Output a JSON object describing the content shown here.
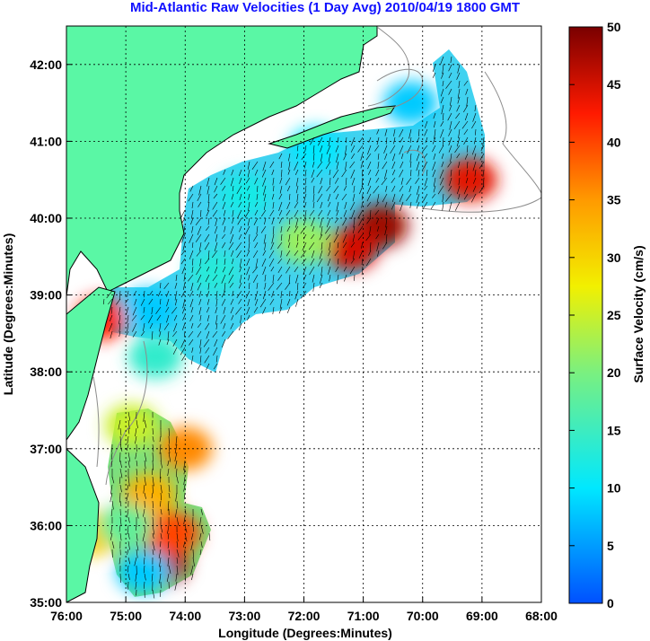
{
  "title": "Mid-Atlantic Raw Velocities (1 Day Avg) 2010/04/19 1800 GMT",
  "xlabel": "Longitude (Degrees:Minutes)",
  "ylabel": "Latitude (Degrees:Minutes)",
  "x_ticks": [
    "76:00",
    "75:00",
    "74:00",
    "73:00",
    "72:00",
    "71:00",
    "70:00",
    "69:00",
    "68:00"
  ],
  "y_ticks": [
    "42:00",
    "41:00",
    "40:00",
    "39:00",
    "38:00",
    "37:00",
    "36:00",
    "35:00"
  ],
  "colorbar": {
    "label": "Surface Velocity (cm/s)",
    "ticks": [
      "50",
      "45",
      "40",
      "35",
      "30",
      "25",
      "20",
      "15",
      "10",
      "5",
      "0"
    ],
    "range": [
      0,
      50
    ]
  },
  "colors": {
    "title": "#1010ff",
    "land": "#5af7a5",
    "coast_contour": "#8c8c8c"
  },
  "chart_data": {
    "type": "heatmap",
    "title": "Mid-Atlantic Raw Velocities (1 Day Avg) 2010/04/19 1800 GMT",
    "xlabel": "Longitude (Degrees:Minutes)",
    "ylabel": "Latitude (Degrees:Minutes)",
    "xlim": [
      -76,
      -68
    ],
    "ylim": [
      35,
      42.5
    ],
    "grid": true,
    "colorbar_label": "Surface Velocity (cm/s)",
    "colorbar_range": [
      0,
      50
    ],
    "regions": [
      {
        "lon": -70.7,
        "lat": 39.9,
        "speed": 48
      },
      {
        "lon": -71.2,
        "lat": 39.6,
        "speed": 45
      },
      {
        "lon": -69.2,
        "lat": 40.5,
        "speed": 44
      },
      {
        "lon": -75.4,
        "lat": 38.7,
        "speed": 42
      },
      {
        "lon": -74.4,
        "lat": 35.5,
        "speed": 47
      },
      {
        "lon": -74.2,
        "lat": 35.9,
        "speed": 40
      },
      {
        "lon": -74.0,
        "lat": 37.0,
        "speed": 36
      },
      {
        "lon": -74.6,
        "lat": 36.4,
        "speed": 33
      },
      {
        "lon": -75.5,
        "lat": 35.9,
        "speed": 30
      },
      {
        "lon": -74.9,
        "lat": 37.3,
        "speed": 25
      },
      {
        "lon": -70.2,
        "lat": 41.5,
        "speed": 8
      },
      {
        "lon": -71.8,
        "lat": 40.9,
        "speed": 10
      },
      {
        "lon": -73.0,
        "lat": 40.3,
        "speed": 12
      },
      {
        "lon": -74.6,
        "lat": 38.8,
        "speed": 8
      },
      {
        "lon": -73.5,
        "lat": 39.3,
        "speed": 13
      },
      {
        "lon": -74.5,
        "lat": 38.2,
        "speed": 14
      },
      {
        "lon": -72.0,
        "lat": 39.7,
        "speed": 22
      },
      {
        "lon": -75.0,
        "lat": 36.0,
        "speed": 18
      },
      {
        "lon": -74.7,
        "lat": 35.4,
        "speed": 8
      }
    ]
  }
}
